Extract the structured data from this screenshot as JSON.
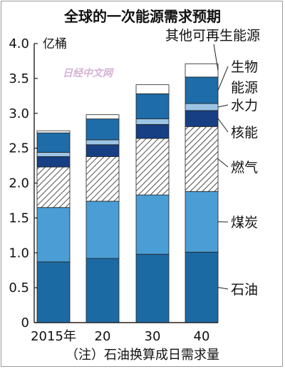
{
  "chart_data": {
    "type": "bar",
    "stacked": true,
    "title": "全球的一次能源需求预期",
    "unit_label": "亿桶",
    "note": "（注）石油换算成日需求量",
    "watermark": "日经中文网",
    "categories": [
      "2015年",
      "20",
      "30",
      "40"
    ],
    "ylim": [
      0,
      4.0
    ],
    "yticks": [
      0,
      0.5,
      1.0,
      1.5,
      2.0,
      2.5,
      3.0,
      3.5,
      4.0
    ],
    "ytick_labels": [
      "0",
      "0.5",
      "1.0",
      "1.5",
      "2.0",
      "2.5",
      "3.0",
      "3.5",
      "4.0"
    ],
    "series": [
      {
        "name": "石油",
        "values": [
          0.87,
          0.92,
          0.98,
          1.01
        ],
        "color": "#1c6aa3",
        "pattern": "solid"
      },
      {
        "name": "煤炭",
        "values": [
          0.78,
          0.82,
          0.85,
          0.87
        ],
        "color": "#4a9ed5",
        "pattern": "solid"
      },
      {
        "name": "燃气",
        "values": [
          0.58,
          0.64,
          0.81,
          0.93
        ],
        "color": "#ffffff",
        "pattern": "hatch"
      },
      {
        "name": "核能",
        "values": [
          0.15,
          0.17,
          0.2,
          0.23
        ],
        "color": "#173f84",
        "pattern": "solid"
      },
      {
        "name": "水力",
        "values": [
          0.06,
          0.07,
          0.08,
          0.1
        ],
        "color": "#9cc4e4",
        "pattern": "solid"
      },
      {
        "name": "生物能源",
        "values": [
          0.28,
          0.3,
          0.36,
          0.38
        ],
        "color": "#1e6ca8",
        "pattern": "solid"
      },
      {
        "name": "其他可再生能源",
        "values": [
          0.03,
          0.06,
          0.13,
          0.19
        ],
        "color": "#ffffff",
        "pattern": "solid"
      }
    ],
    "legend": {
      "placement": "right",
      "labels": [
        "其他可再生能源",
        "生物",
        "能源",
        "水力",
        "核能",
        "燃气",
        "煤炭",
        "石油"
      ]
    }
  }
}
